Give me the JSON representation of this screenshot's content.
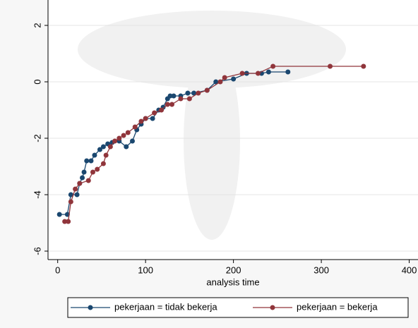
{
  "chart_data": {
    "type": "line",
    "xlabel": "analysis time",
    "xlim": [
      -11,
      410
    ],
    "ylim": [
      -6.3,
      2.9
    ],
    "xticks": [
      0,
      100,
      200,
      300,
      400
    ],
    "yticks": [
      -6,
      -4,
      -2,
      0,
      2
    ],
    "grid": true,
    "series": [
      {
        "name": "pekerjaan = tidak bekerja",
        "color": "#1a476f",
        "x": [
          2,
          11,
          15,
          22,
          25,
          28,
          30,
          33,
          38,
          42,
          48,
          52,
          57,
          62,
          70,
          78,
          85,
          90,
          95,
          100,
          108,
          115,
          120,
          125,
          128,
          132,
          140,
          148,
          155,
          170,
          180,
          200,
          215,
          232,
          240,
          262
        ],
        "values": [
          -4.7,
          -4.7,
          -4.0,
          -4.0,
          -3.6,
          -3.4,
          -3.2,
          -2.8,
          -2.8,
          -2.6,
          -2.4,
          -2.3,
          -2.2,
          -2.15,
          -2.1,
          -2.3,
          -2.1,
          -1.7,
          -1.5,
          -1.3,
          -1.3,
          -1.0,
          -0.9,
          -0.6,
          -0.5,
          -0.5,
          -0.5,
          -0.4,
          -0.4,
          -0.3,
          0.0,
          0.1,
          0.3,
          0.3,
          0.35,
          0.35
        ]
      },
      {
        "name": "pekerjaan = bekerja",
        "color": "#90353b",
        "x": [
          8,
          12,
          15,
          20,
          25,
          35,
          40,
          45,
          52,
          55,
          60,
          65,
          70,
          75,
          80,
          88,
          95,
          100,
          110,
          118,
          125,
          130,
          140,
          150,
          160,
          170,
          185,
          190,
          210,
          228,
          245,
          310,
          348
        ],
        "values": [
          -4.95,
          -4.95,
          -4.25,
          -3.8,
          -3.6,
          -3.5,
          -3.2,
          -3.1,
          -2.9,
          -2.6,
          -2.3,
          -2.1,
          -2.0,
          -1.9,
          -1.8,
          -1.6,
          -1.4,
          -1.3,
          -1.1,
          -1.0,
          -0.8,
          -0.8,
          -0.6,
          -0.6,
          -0.4,
          -0.3,
          0.0,
          0.15,
          0.3,
          0.3,
          0.55,
          0.55,
          0.55
        ]
      }
    ]
  }
}
